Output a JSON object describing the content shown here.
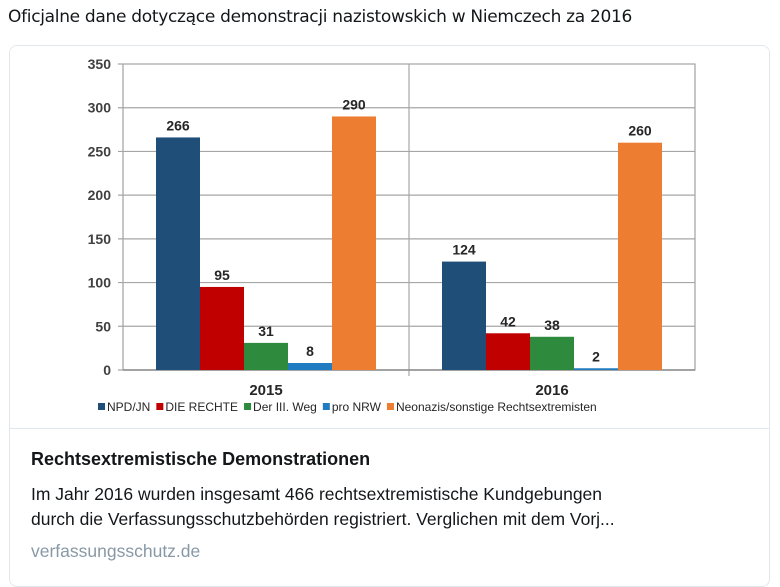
{
  "tweet": {
    "text": "Oficjalne dane dotyczące demonstracji nazistowskich w Niemczech za 2016"
  },
  "card": {
    "title": "Rechtsextremistische Demonstrationen",
    "description_line1": "Im Jahr 2016 wurden insgesamt 466 rechtsextremistische Kundgebungen",
    "description_line2": "durch die Verfassungsschutzbehörden registriert. Verglichen mit dem Vorj...",
    "domain": "verfassungsschutz.de"
  },
  "chart_data": {
    "type": "bar",
    "title": "",
    "xlabel": "",
    "ylabel": "",
    "categories": [
      "2015",
      "2016"
    ],
    "ylim": [
      0,
      350
    ],
    "yticks": [
      0,
      50,
      100,
      150,
      200,
      250,
      300,
      350
    ],
    "grid": true,
    "legend_position": "bottom",
    "series": [
      {
        "name": "NPD/JN",
        "color": "#1f4e79",
        "values": [
          266,
          124
        ]
      },
      {
        "name": "DIE RECHTE",
        "color": "#c00000",
        "values": [
          95,
          42
        ]
      },
      {
        "name": "Der III. Weg",
        "color": "#2e8b3e",
        "values": [
          31,
          38
        ]
      },
      {
        "name": "pro NRW",
        "color": "#1f7cc1",
        "values": [
          8,
          2
        ]
      },
      {
        "name": "Neonazis/sonstige Rechtsextremisten",
        "color": "#ed7d31",
        "values": [
          290,
          260
        ]
      }
    ]
  }
}
